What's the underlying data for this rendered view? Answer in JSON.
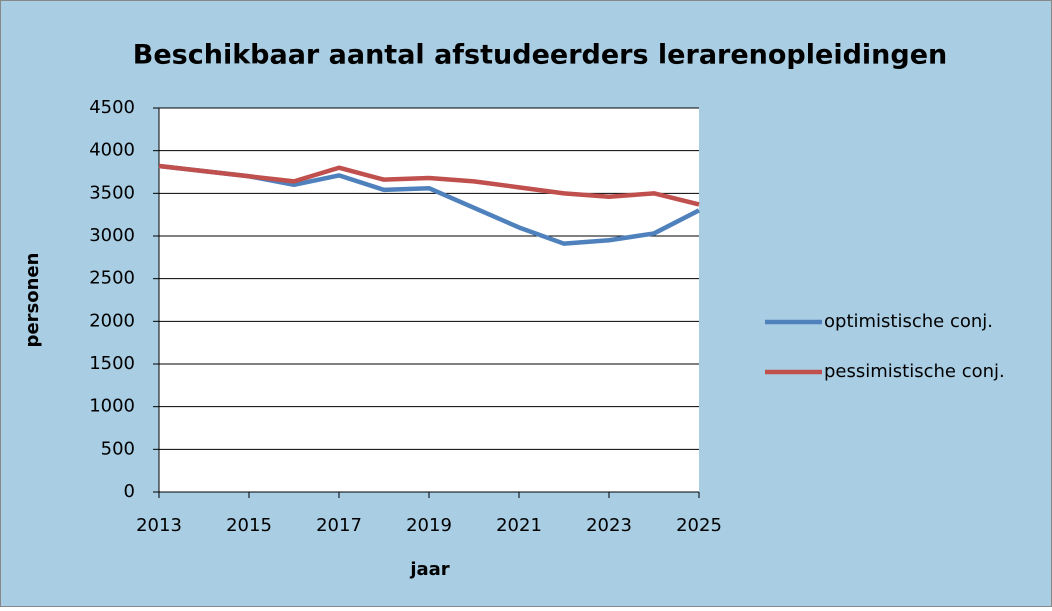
{
  "chart_data": {
    "type": "line",
    "title": "Beschikbaar aantal afstudeerders lerarenopleidingen",
    "x_label": "jaar",
    "y_label": "personen",
    "x": [
      2013,
      2014,
      2015,
      2016,
      2017,
      2018,
      2019,
      2020,
      2021,
      2022,
      2023,
      2024,
      2025
    ],
    "series": [
      {
        "name": "optimistische conj.",
        "color": "#4f81bd",
        "values": [
          3820,
          3760,
          3700,
          3600,
          3710,
          3540,
          3560,
          3330,
          3100,
          2910,
          2950,
          3030,
          3300
        ]
      },
      {
        "name": "pessimistische conj.",
        "color": "#c0504d",
        "values": [
          3820,
          3760,
          3700,
          3640,
          3800,
          3660,
          3680,
          3640,
          3570,
          3500,
          3460,
          3500,
          3370
        ]
      }
    ],
    "xlim": [
      2013,
      2025
    ],
    "xticks": [
      2013,
      2015,
      2017,
      2019,
      2021,
      2023,
      2025
    ],
    "ylim": [
      0,
      4500
    ],
    "yticks": [
      0,
      500,
      1000,
      1500,
      2000,
      2500,
      3000,
      3500,
      4000,
      4500
    ],
    "grid": true,
    "legend": "right"
  }
}
